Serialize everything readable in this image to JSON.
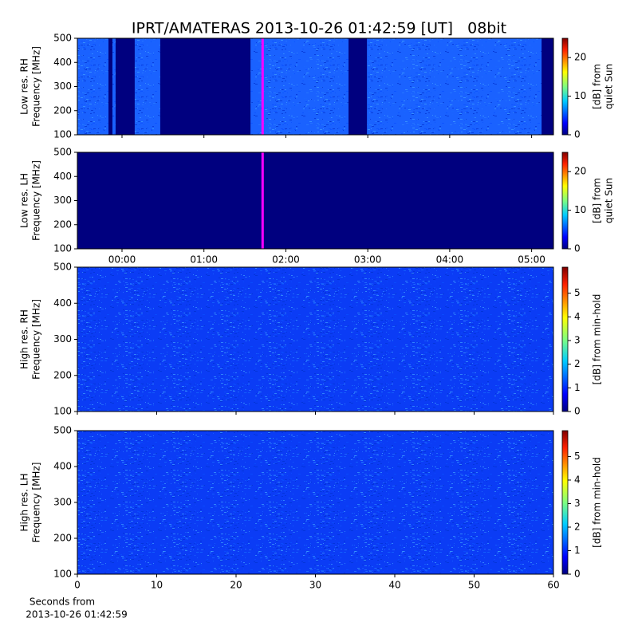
{
  "chart_data": [
    {
      "type": "heatmap",
      "title": "IPRT/AMATERAS 2013-10-26 01:42:59 [UT]   08bit",
      "ylabel": [
        "Low res. RH",
        "Frequency [MHz]"
      ],
      "ylim": [
        100,
        500
      ],
      "yticks": [
        100,
        200,
        300,
        400,
        500
      ],
      "xlim": [
        -32.7,
        316
      ],
      "xticks": [
        {
          "value": 0,
          "label": "00:00"
        },
        {
          "value": 60,
          "label": "01:00"
        },
        {
          "value": 120,
          "label": "02:00"
        },
        {
          "value": 180,
          "label": "03:00"
        },
        {
          "value": 240,
          "label": "04:00"
        },
        {
          "value": 300,
          "label": "05:00"
        }
      ],
      "show_xtick_labels": false,
      "color": "#1a62ff",
      "gap_color": "#00007f",
      "data_gaps": [
        [
          -9.9,
          -7.0
        ],
        [
          -4.7,
          9.3
        ],
        [
          28.0,
          94.1
        ],
        [
          165.9,
          179.4
        ],
        [
          307.3,
          316
        ]
      ],
      "cursor_time": 102.98,
      "cursor_color": "#ff00ff",
      "colorbar_label": [
        "[dB] from",
        "quiet Sun"
      ],
      "clim": [
        0,
        25
      ],
      "cticks": [
        0,
        10,
        20
      ]
    },
    {
      "type": "heatmap",
      "ylabel": [
        "Low res. LH",
        "Frequency [MHz]"
      ],
      "ylim": [
        100,
        500
      ],
      "yticks": [
        100,
        200,
        300,
        400,
        500
      ],
      "xlim": [
        -32.7,
        316
      ],
      "xticks": [
        {
          "value": 0,
          "label": "00:00"
        },
        {
          "value": 60,
          "label": "01:00"
        },
        {
          "value": 120,
          "label": "02:00"
        },
        {
          "value": 180,
          "label": "03:00"
        },
        {
          "value": 240,
          "label": "04:00"
        },
        {
          "value": 300,
          "label": "05:00"
        }
      ],
      "show_xtick_labels": true,
      "color": "#00007f",
      "gap_color": "#00007f",
      "data_gaps": [],
      "cursor_time": 102.98,
      "cursor_color": "#ff00ff",
      "colorbar_label": [
        "[dB] from",
        "quiet Sun"
      ],
      "clim": [
        0,
        25
      ],
      "cticks": [
        0,
        10,
        20
      ]
    },
    {
      "type": "heatmap",
      "ylabel": [
        "High res. RH",
        "Frequency [MHz]"
      ],
      "ylim": [
        100,
        500
      ],
      "yticks": [
        100,
        200,
        300,
        400,
        500
      ],
      "xlim": [
        0,
        60
      ],
      "xticks": [
        0,
        10,
        20,
        30,
        40,
        50,
        60
      ],
      "show_xtick_labels": false,
      "color": "#0b3cf5",
      "gap_color": "#00007f",
      "data_gaps": [],
      "colorbar_label": [
        "[dB] from min-hold"
      ],
      "clim": [
        0,
        6.1
      ],
      "cticks": [
        0,
        1,
        2,
        3,
        4,
        5
      ]
    },
    {
      "type": "heatmap",
      "ylabel": [
        "High res. LH",
        "Frequency [MHz]"
      ],
      "ylim": [
        100,
        500
      ],
      "yticks": [
        100,
        200,
        300,
        400,
        500
      ],
      "xlim": [
        0,
        60
      ],
      "xticks": [
        0,
        10,
        20,
        30,
        40,
        50,
        60
      ],
      "show_xtick_labels": true,
      "xlabel": [
        "Seconds from",
        "2013-10-26 01:42:59"
      ],
      "color": "#0b3cf5",
      "gap_color": "#00007f",
      "data_gaps": [],
      "colorbar_label": [
        "[dB] from min-hold"
      ],
      "clim": [
        0,
        6.1
      ],
      "cticks": [
        0,
        1,
        2,
        3,
        4,
        5
      ]
    }
  ]
}
